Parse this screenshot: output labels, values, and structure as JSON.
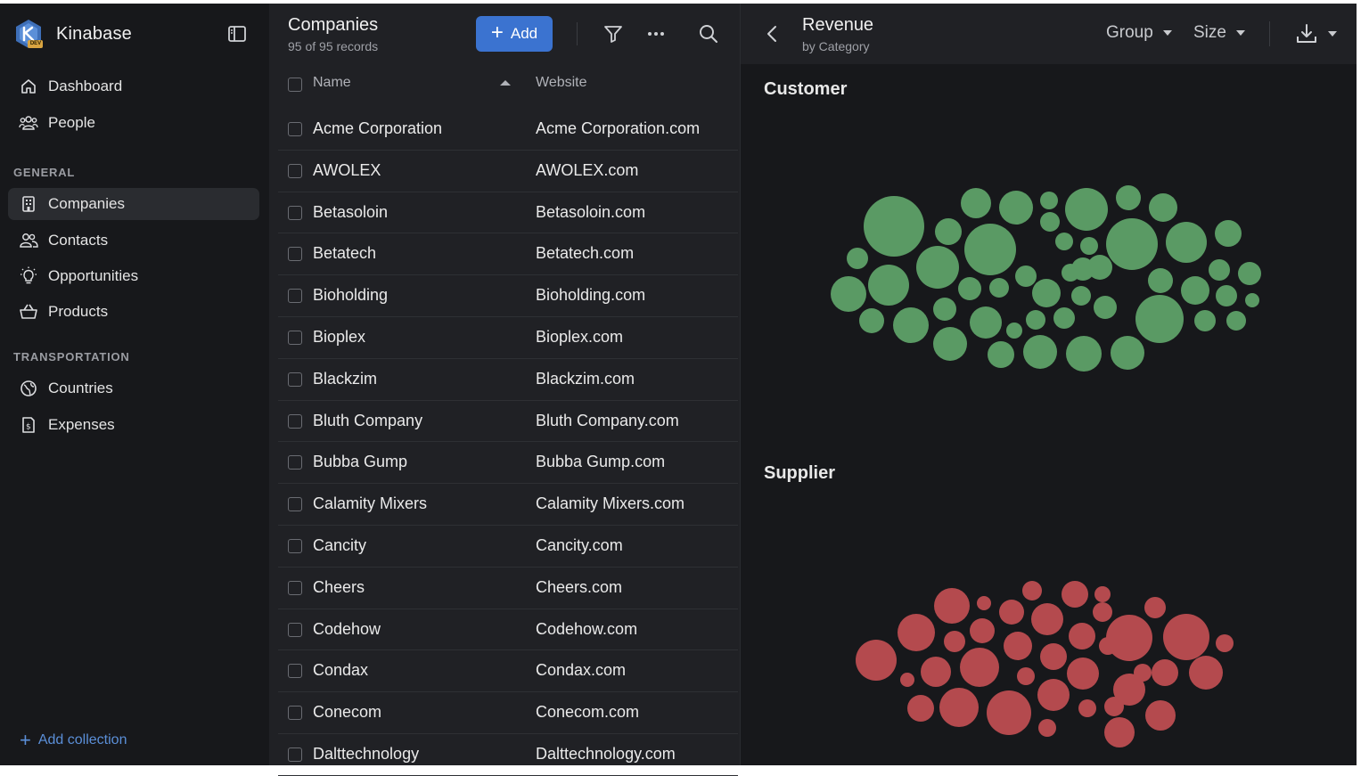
{
  "app": {
    "name": "Kinabase",
    "badge": "DEV"
  },
  "sidebar": {
    "top_items": [
      {
        "label": "Dashboard",
        "icon": "home-icon"
      },
      {
        "label": "People",
        "icon": "people-icon"
      }
    ],
    "sections": [
      {
        "label": "GENERAL",
        "items": [
          {
            "label": "Companies",
            "icon": "building-icon",
            "active": true
          },
          {
            "label": "Contacts",
            "icon": "contacts-icon"
          },
          {
            "label": "Opportunities",
            "icon": "lightbulb-icon"
          },
          {
            "label": "Products",
            "icon": "basket-icon"
          }
        ]
      },
      {
        "label": "TRANSPORTATION",
        "items": [
          {
            "label": "Countries",
            "icon": "globe-icon"
          },
          {
            "label": "Expenses",
            "icon": "receipt-icon"
          }
        ]
      }
    ],
    "add_collection": "Add collection"
  },
  "list": {
    "title": "Companies",
    "subtitle": "95 of 95 records",
    "add_label": "Add",
    "columns": {
      "name": "Name",
      "website": "Website"
    },
    "rows": [
      {
        "name": "Acme Corporation",
        "website": "Acme Corporation.com"
      },
      {
        "name": "AWOLEX",
        "website": "AWOLEX.com"
      },
      {
        "name": "Betasoloin",
        "website": "Betasoloin.com"
      },
      {
        "name": "Betatech",
        "website": "Betatech.com"
      },
      {
        "name": "Bioholding",
        "website": "Bioholding.com"
      },
      {
        "name": "Bioplex",
        "website": "Bioplex.com"
      },
      {
        "name": "Blackzim",
        "website": "Blackzim.com"
      },
      {
        "name": "Bluth Company",
        "website": "Bluth Company.com"
      },
      {
        "name": "Bubba Gump",
        "website": "Bubba Gump.com"
      },
      {
        "name": "Calamity Mixers",
        "website": "Calamity Mixers.com"
      },
      {
        "name": "Cancity",
        "website": "Cancity.com"
      },
      {
        "name": "Cheers",
        "website": "Cheers.com"
      },
      {
        "name": "Codehow",
        "website": "Codehow.com"
      },
      {
        "name": "Condax",
        "website": "Condax.com"
      },
      {
        "name": "Conecom",
        "website": "Conecom.com"
      },
      {
        "name": "Dalttechnology",
        "website": "Dalttechnology.com"
      }
    ]
  },
  "chart": {
    "title": "Revenue",
    "subtitle": "by Category",
    "group_label": "Group",
    "size_label": "Size",
    "groups": [
      {
        "label": "Customer",
        "color": "#5a9a64"
      },
      {
        "label": "Supplier",
        "color": "#b44a4e"
      }
    ]
  }
}
